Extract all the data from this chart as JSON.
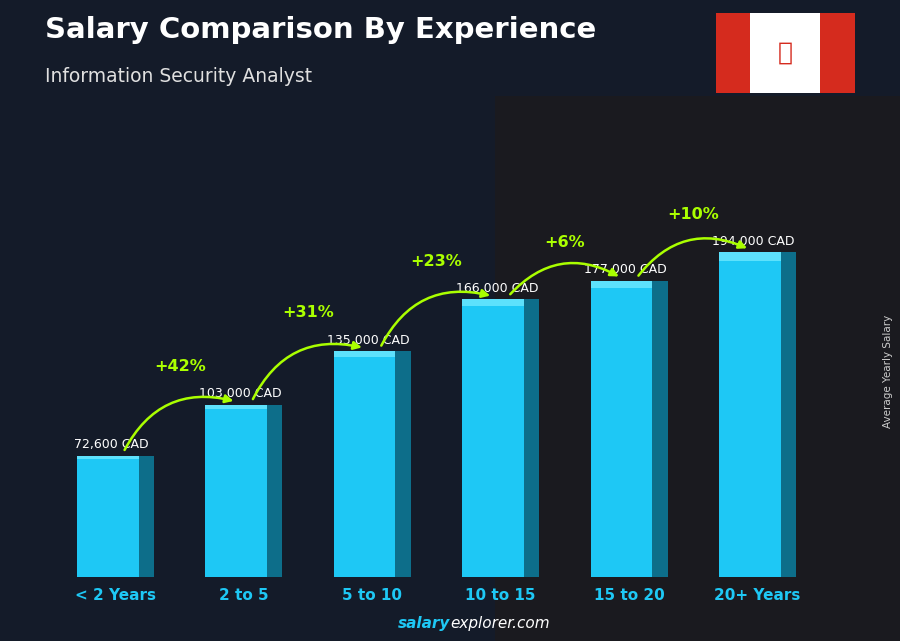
{
  "title": "Salary Comparison By Experience",
  "subtitle": "Information Security Analyst",
  "categories": [
    "< 2 Years",
    "2 to 5",
    "5 to 10",
    "10 to 15",
    "15 to 20",
    "20+ Years"
  ],
  "values": [
    72600,
    103000,
    135000,
    166000,
    177000,
    194000
  ],
  "value_labels": [
    "72,600 CAD",
    "103,000 CAD",
    "135,000 CAD",
    "166,000 CAD",
    "177,000 CAD",
    "194,000 CAD"
  ],
  "pct_labels": [
    "+42%",
    "+31%",
    "+23%",
    "+6%",
    "+10%"
  ],
  "bar_color_main": "#1ec8f5",
  "bar_color_dark": "#0d6e8a",
  "bar_color_top": "#6ee8ff",
  "bg_color": "#1c2333",
  "title_color": "#ffffff",
  "subtitle_color": "#e0e0e0",
  "value_label_color": "#ffffff",
  "pct_color": "#aaff00",
  "xlabel_color": "#1ec8f5",
  "footer_salary_color": "#1ec8f5",
  "footer_explorer_color": "#ffffff",
  "ylabel_text": "Average Yearly Salary",
  "ylabel_color": "#cccccc",
  "max_val": 230000,
  "bar_width": 0.6
}
